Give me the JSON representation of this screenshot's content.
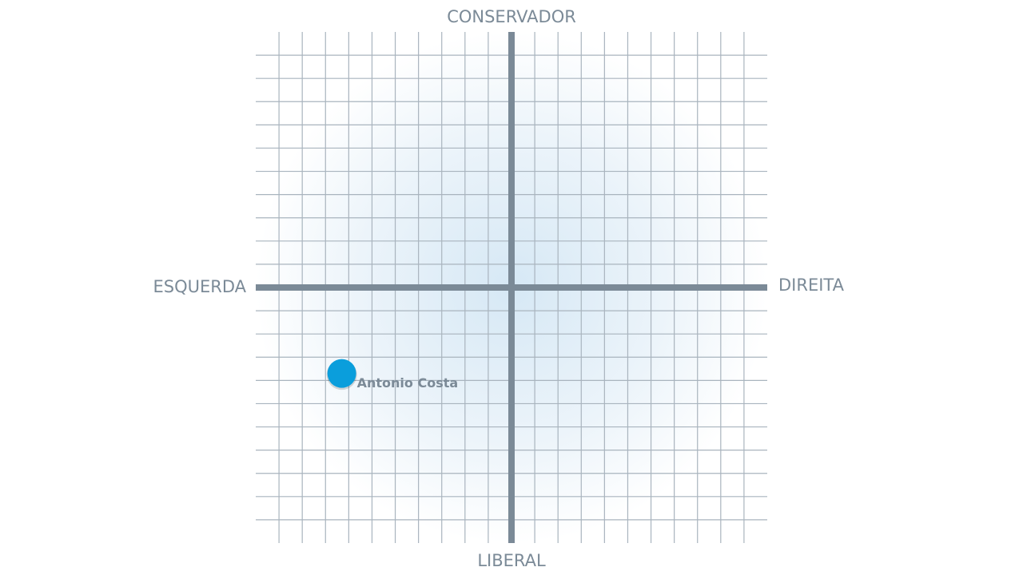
{
  "chart_data": {
    "type": "scatter",
    "y_top_label": "CONSERVADOR",
    "y_bottom_label": "LIBERAL",
    "x_left_label": "ESQUERDA",
    "x_right_label": "DIREITA",
    "xlim": [
      -11,
      11
    ],
    "ylim": [
      -11,
      11
    ],
    "xticks": [
      -10,
      -9,
      -8,
      -7,
      -6,
      -5,
      -4,
      -3,
      -2,
      -1,
      0,
      1,
      2,
      3,
      4,
      5,
      6,
      7,
      8,
      9,
      10
    ],
    "yticks": [
      -10,
      -9,
      -8,
      -7,
      -6,
      -5,
      -4,
      -3,
      -2,
      -1,
      0,
      1,
      2,
      3,
      4,
      5,
      6,
      7,
      8,
      9,
      10
    ],
    "grid": true,
    "series": [
      {
        "name": "Antonio Costa",
        "color": "#0a9edc",
        "x": [
          -7.3
        ],
        "values": [
          -3.7
        ]
      }
    ]
  }
}
